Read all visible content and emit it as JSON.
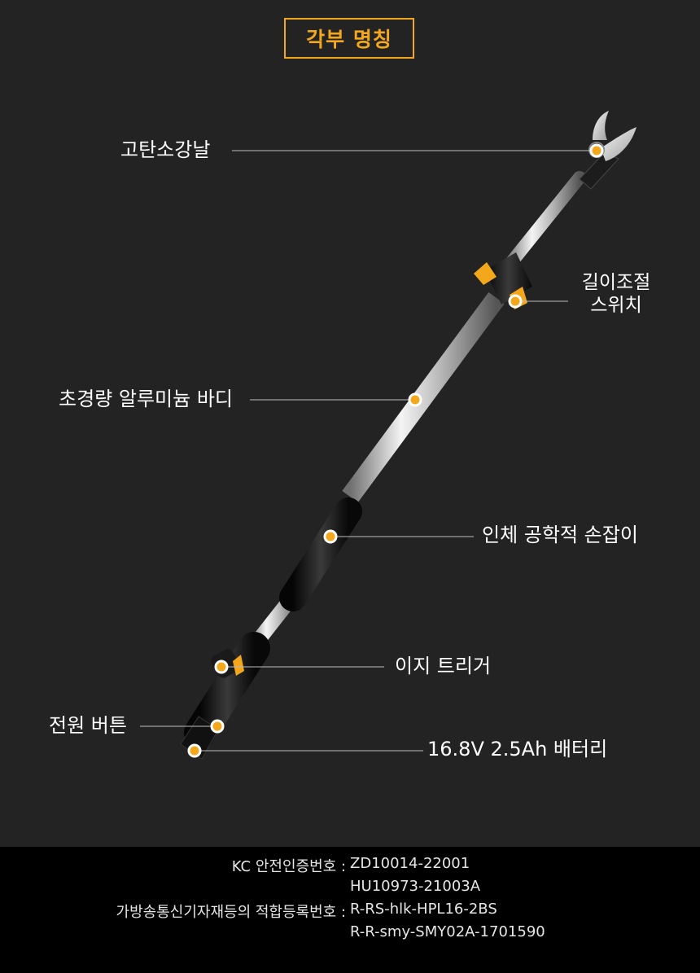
{
  "title": "각부 명칭",
  "accent_color": "#f3a81c",
  "parts": {
    "blade": "고탄소강날",
    "length_switch_line1": "길이조절",
    "length_switch_line2": "스위치",
    "body": "초경량 알루미늄 바디",
    "grip": "인체 공학적 손잡이",
    "trigger": "이지 트리거",
    "power_button": "전원 버튼",
    "battery": "16.8V 2.5Ah 배터리"
  },
  "certifications": {
    "kc_label": "KC 안전인증번호 :",
    "kc_values": [
      "ZD10014-22001",
      "HU10973-21003A"
    ],
    "radio_label": "가방송통신기자재등의 적합등록번호 :",
    "radio_values": [
      "R-RS-hlk-HPL16-2BS",
      "R-R-smy-SMY02A-1701590"
    ]
  }
}
